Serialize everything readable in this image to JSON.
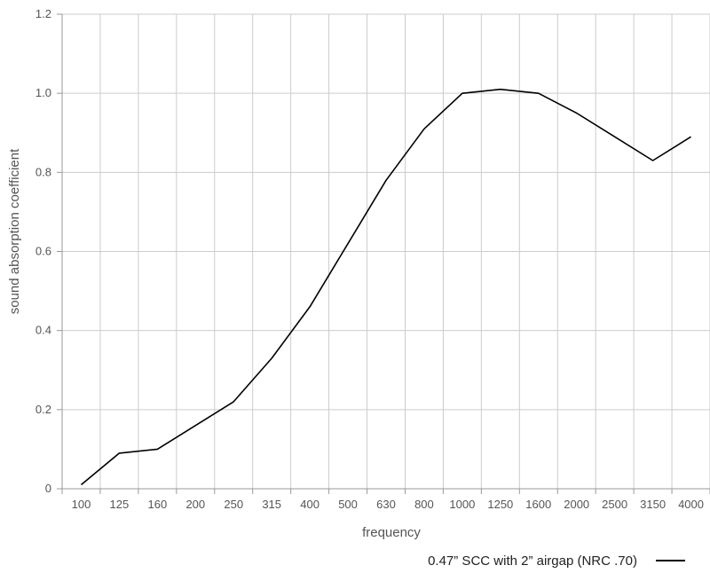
{
  "chart_data": {
    "type": "line",
    "title": "",
    "xlabel": "frequency",
    "ylabel": "sound absorption coefficient",
    "categories": [
      "100",
      "125",
      "160",
      "200",
      "250",
      "315",
      "400",
      "500",
      "630",
      "800",
      "1000",
      "1250",
      "1600",
      "2000",
      "2500",
      "3150",
      "4000"
    ],
    "series": [
      {
        "name": "0.47” SCC with 2” airgap (NRC .70)",
        "values": [
          0.01,
          0.09,
          0.1,
          0.16,
          0.22,
          0.33,
          0.46,
          0.62,
          0.78,
          0.91,
          1.0,
          1.01,
          1.0,
          0.95,
          0.89,
          0.83,
          0.89
        ],
        "color": "#000000"
      }
    ],
    "ylim": [
      0,
      1.2
    ],
    "yticks": [
      0,
      0.2,
      0.4,
      0.6,
      0.8,
      1.0,
      1.2
    ],
    "ytick_labels": [
      "0",
      "0.2",
      "0.4",
      "0.6",
      "0.8",
      "1.0",
      "1.2"
    ],
    "grid": true,
    "legend_position": "bottom-right",
    "colors": {
      "grid": "#cccccc",
      "axis": "#999999",
      "text": "#555555"
    }
  }
}
